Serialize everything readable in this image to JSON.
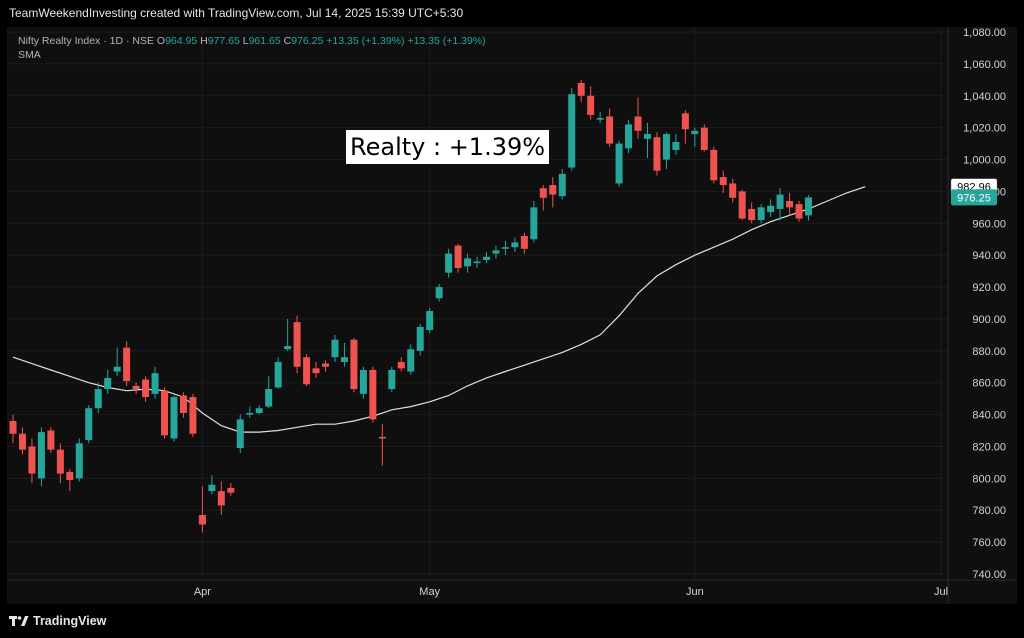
{
  "caption": "TeamWeekendInvesting created with TradingView.com, Jul 14, 2025 15:39 UTC+5:30",
  "legend": {
    "symbol": "Nifty Realty Index · 1D · NSE",
    "open_label": "O",
    "open": "964.95",
    "high_label": "H",
    "high": "977.65",
    "low_label": "L",
    "low": "961.65",
    "close_label": "C",
    "close": "976.25",
    "change": "+13.35 (+1.39%)",
    "change2": "+13.35 (+1.39%)",
    "sma_label": "SMA"
  },
  "callout": "Realty : +1.39%",
  "branding": "TradingView",
  "colors": {
    "up": "#26a69a",
    "down": "#ef5350",
    "sma": "#e0e0e0",
    "background": "#0f0f0f",
    "grid": "#1c1c1c"
  },
  "chart_data": {
    "type": "candlestick",
    "y_ticks": [
      "1,080.00",
      "1,060.00",
      "1,040.00",
      "1,020.00",
      "1,000.00",
      "980.00",
      "960.00",
      "940.00",
      "920.00",
      "900.00",
      "880.00",
      "860.00",
      "840.00",
      "820.00",
      "800.00",
      "780.00",
      "760.00",
      "740.00"
    ],
    "ylim": [
      740,
      1080
    ],
    "x_labels": [
      {
        "label": "Apr",
        "index": 20
      },
      {
        "label": "May",
        "index": 44
      },
      {
        "label": "Jun",
        "index": 72
      },
      {
        "label": "Jul",
        "index": 98
      }
    ],
    "last_price_label": "976.25",
    "sma_value_label": "982.96",
    "candles": [
      {
        "o": 836,
        "h": 840,
        "l": 822,
        "c": 828
      },
      {
        "o": 828,
        "h": 832,
        "l": 815,
        "c": 818
      },
      {
        "o": 820,
        "h": 825,
        "l": 797,
        "c": 803
      },
      {
        "o": 800,
        "h": 832,
        "l": 795,
        "c": 829
      },
      {
        "o": 830,
        "h": 832,
        "l": 816,
        "c": 818
      },
      {
        "o": 818,
        "h": 822,
        "l": 797,
        "c": 803
      },
      {
        "o": 804,
        "h": 806,
        "l": 792,
        "c": 799
      },
      {
        "o": 800,
        "h": 825,
        "l": 798,
        "c": 822
      },
      {
        "o": 824,
        "h": 846,
        "l": 822,
        "c": 844
      },
      {
        "o": 844,
        "h": 860,
        "l": 841,
        "c": 856
      },
      {
        "o": 856,
        "h": 868,
        "l": 853,
        "c": 863
      },
      {
        "o": 867,
        "h": 882,
        "l": 864,
        "c": 870
      },
      {
        "o": 882,
        "h": 886,
        "l": 858,
        "c": 861
      },
      {
        "o": 858,
        "h": 860,
        "l": 853,
        "c": 856
      },
      {
        "o": 862,
        "h": 864,
        "l": 848,
        "c": 851
      },
      {
        "o": 853,
        "h": 870,
        "l": 850,
        "c": 866
      },
      {
        "o": 855,
        "h": 857,
        "l": 825,
        "c": 827
      },
      {
        "o": 825,
        "h": 852,
        "l": 823,
        "c": 851
      },
      {
        "o": 852,
        "h": 854,
        "l": 838,
        "c": 841
      },
      {
        "o": 851,
        "h": 853,
        "l": 826,
        "c": 828
      },
      {
        "o": 777,
        "h": 795,
        "l": 766,
        "c": 771
      },
      {
        "o": 792,
        "h": 802,
        "l": 790,
        "c": 796
      },
      {
        "o": 792,
        "h": 798,
        "l": 777,
        "c": 783
      },
      {
        "o": 794,
        "h": 797,
        "l": 789,
        "c": 791
      },
      {
        "o": 819,
        "h": 840,
        "l": 816,
        "c": 837
      },
      {
        "o": 840,
        "h": 845,
        "l": 838,
        "c": 841
      },
      {
        "o": 841,
        "h": 846,
        "l": 840,
        "c": 844
      },
      {
        "o": 845,
        "h": 864,
        "l": 844,
        "c": 856
      },
      {
        "o": 857,
        "h": 876,
        "l": 856,
        "c": 873
      },
      {
        "o": 881,
        "h": 900,
        "l": 880,
        "c": 883
      },
      {
        "o": 898,
        "h": 902,
        "l": 866,
        "c": 870
      },
      {
        "o": 876,
        "h": 878,
        "l": 858,
        "c": 859
      },
      {
        "o": 869,
        "h": 873,
        "l": 863,
        "c": 866
      },
      {
        "o": 872,
        "h": 874,
        "l": 867,
        "c": 870
      },
      {
        "o": 876,
        "h": 890,
        "l": 873,
        "c": 887
      },
      {
        "o": 873,
        "h": 885,
        "l": 870,
        "c": 876
      },
      {
        "o": 887,
        "h": 888,
        "l": 854,
        "c": 856
      },
      {
        "o": 853,
        "h": 870,
        "l": 850,
        "c": 868
      },
      {
        "o": 868,
        "h": 870,
        "l": 835,
        "c": 837
      },
      {
        "o": 826,
        "h": 834,
        "l": 808,
        "c": 825
      },
      {
        "o": 856,
        "h": 870,
        "l": 854,
        "c": 868
      },
      {
        "o": 873,
        "h": 876,
        "l": 867,
        "c": 869
      },
      {
        "o": 867,
        "h": 884,
        "l": 865,
        "c": 881
      },
      {
        "o": 880,
        "h": 897,
        "l": 877,
        "c": 895
      },
      {
        "o": 893,
        "h": 907,
        "l": 891,
        "c": 905
      },
      {
        "o": 913,
        "h": 922,
        "l": 911,
        "c": 920
      },
      {
        "o": 929,
        "h": 944,
        "l": 926,
        "c": 941
      },
      {
        "o": 946,
        "h": 947,
        "l": 929,
        "c": 932
      },
      {
        "o": 933,
        "h": 941,
        "l": 929,
        "c": 938
      },
      {
        "o": 935,
        "h": 939,
        "l": 932,
        "c": 936
      },
      {
        "o": 937,
        "h": 942,
        "l": 935,
        "c": 939
      },
      {
        "o": 941,
        "h": 946,
        "l": 938,
        "c": 943
      },
      {
        "o": 944,
        "h": 949,
        "l": 940,
        "c": 945
      },
      {
        "o": 945,
        "h": 951,
        "l": 942,
        "c": 948
      },
      {
        "o": 952,
        "h": 954,
        "l": 941,
        "c": 944
      },
      {
        "o": 950,
        "h": 974,
        "l": 948,
        "c": 970
      },
      {
        "o": 982,
        "h": 984,
        "l": 968,
        "c": 976
      },
      {
        "o": 984,
        "h": 989,
        "l": 970,
        "c": 978
      },
      {
        "o": 977,
        "h": 994,
        "l": 975,
        "c": 991
      },
      {
        "o": 995,
        "h": 1045,
        "l": 993,
        "c": 1041
      },
      {
        "o": 1048,
        "h": 1050,
        "l": 1036,
        "c": 1040
      },
      {
        "o": 1040,
        "h": 1046,
        "l": 1025,
        "c": 1028
      },
      {
        "o": 1025,
        "h": 1030,
        "l": 1023,
        "c": 1026
      },
      {
        "o": 1027,
        "h": 1032,
        "l": 1008,
        "c": 1010
      },
      {
        "o": 985,
        "h": 1012,
        "l": 983,
        "c": 1010
      },
      {
        "o": 1007,
        "h": 1025,
        "l": 1004,
        "c": 1022
      },
      {
        "o": 1027,
        "h": 1039,
        "l": 1013,
        "c": 1018
      },
      {
        "o": 1013,
        "h": 1023,
        "l": 1001,
        "c": 1016
      },
      {
        "o": 1014,
        "h": 1017,
        "l": 990,
        "c": 993
      },
      {
        "o": 1000,
        "h": 1017,
        "l": 994,
        "c": 1016
      },
      {
        "o": 1006,
        "h": 1016,
        "l": 1003,
        "c": 1011
      },
      {
        "o": 1029,
        "h": 1031,
        "l": 1010,
        "c": 1019
      },
      {
        "o": 1016,
        "h": 1020,
        "l": 1008,
        "c": 1018
      },
      {
        "o": 1020,
        "h": 1022,
        "l": 1005,
        "c": 1006
      },
      {
        "o": 1006,
        "h": 1008,
        "l": 985,
        "c": 987
      },
      {
        "o": 989,
        "h": 993,
        "l": 979,
        "c": 984
      },
      {
        "o": 985,
        "h": 988,
        "l": 973,
        "c": 976
      },
      {
        "o": 980,
        "h": 981,
        "l": 962,
        "c": 963
      },
      {
        "o": 969,
        "h": 973,
        "l": 960,
        "c": 962
      },
      {
        "o": 962,
        "h": 972,
        "l": 960,
        "c": 970
      },
      {
        "o": 967,
        "h": 975,
        "l": 964,
        "c": 971
      },
      {
        "o": 969,
        "h": 982,
        "l": 962,
        "c": 978
      },
      {
        "o": 974,
        "h": 979,
        "l": 965,
        "c": 970
      },
      {
        "o": 972,
        "h": 974,
        "l": 961,
        "c": 963
      },
      {
        "o": 964.95,
        "h": 977.65,
        "l": 961.65,
        "c": 976.25
      }
    ],
    "sma": [
      [
        0,
        876
      ],
      [
        2,
        872
      ],
      [
        4,
        868
      ],
      [
        6,
        864
      ],
      [
        8,
        860
      ],
      [
        10,
        857
      ],
      [
        12,
        855
      ],
      [
        14,
        856
      ],
      [
        16,
        855
      ],
      [
        18,
        851
      ],
      [
        20,
        841
      ],
      [
        22,
        833
      ],
      [
        24,
        829
      ],
      [
        26,
        829
      ],
      [
        28,
        830
      ],
      [
        30,
        832
      ],
      [
        32,
        834
      ],
      [
        34,
        834
      ],
      [
        36,
        836
      ],
      [
        38,
        839
      ],
      [
        40,
        843
      ],
      [
        42,
        845
      ],
      [
        44,
        848
      ],
      [
        46,
        852
      ],
      [
        48,
        858
      ],
      [
        50,
        863
      ],
      [
        52,
        867
      ],
      [
        54,
        871
      ],
      [
        56,
        875
      ],
      [
        58,
        879
      ],
      [
        60,
        884
      ],
      [
        62,
        890
      ],
      [
        64,
        902
      ],
      [
        66,
        916
      ],
      [
        68,
        927
      ],
      [
        70,
        934
      ],
      [
        72,
        940
      ],
      [
        74,
        945
      ],
      [
        76,
        950
      ],
      [
        78,
        956
      ],
      [
        80,
        961
      ],
      [
        82,
        965
      ],
      [
        84,
        969
      ],
      [
        86,
        974
      ],
      [
        88,
        979
      ],
      [
        90,
        982.96
      ]
    ]
  }
}
